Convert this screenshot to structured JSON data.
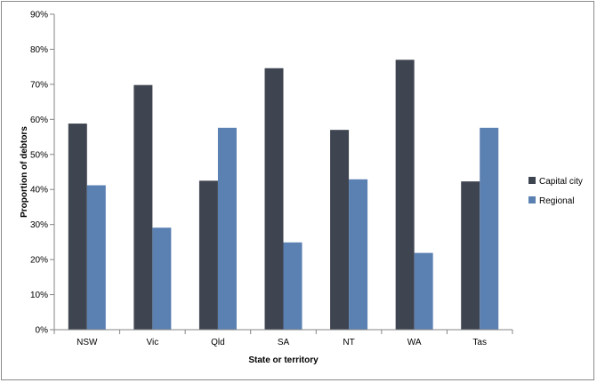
{
  "chart_data": {
    "type": "bar",
    "title": "",
    "xlabel": "State or territory",
    "ylabel": "Proportion of debtors",
    "categories": [
      "NSW",
      "Vic",
      "Qld",
      "SA",
      "NT",
      "WA",
      "Tas"
    ],
    "ylim": [
      0,
      90
    ],
    "yticks": [
      "0%",
      "10%",
      "20%",
      "30%",
      "40%",
      "50%",
      "60%",
      "70%",
      "80%",
      "90%"
    ],
    "grid": false,
    "legend_position": "right",
    "series": [
      {
        "name": "Capital city",
        "color": "#3f4550",
        "values": [
          58.8,
          69.8,
          42.5,
          74.6,
          57.0,
          77.0,
          42.3
        ]
      },
      {
        "name": "Regional",
        "color": "#5b80b2",
        "values": [
          41.2,
          29.1,
          57.6,
          24.9,
          42.9,
          21.9,
          57.6
        ]
      }
    ]
  }
}
